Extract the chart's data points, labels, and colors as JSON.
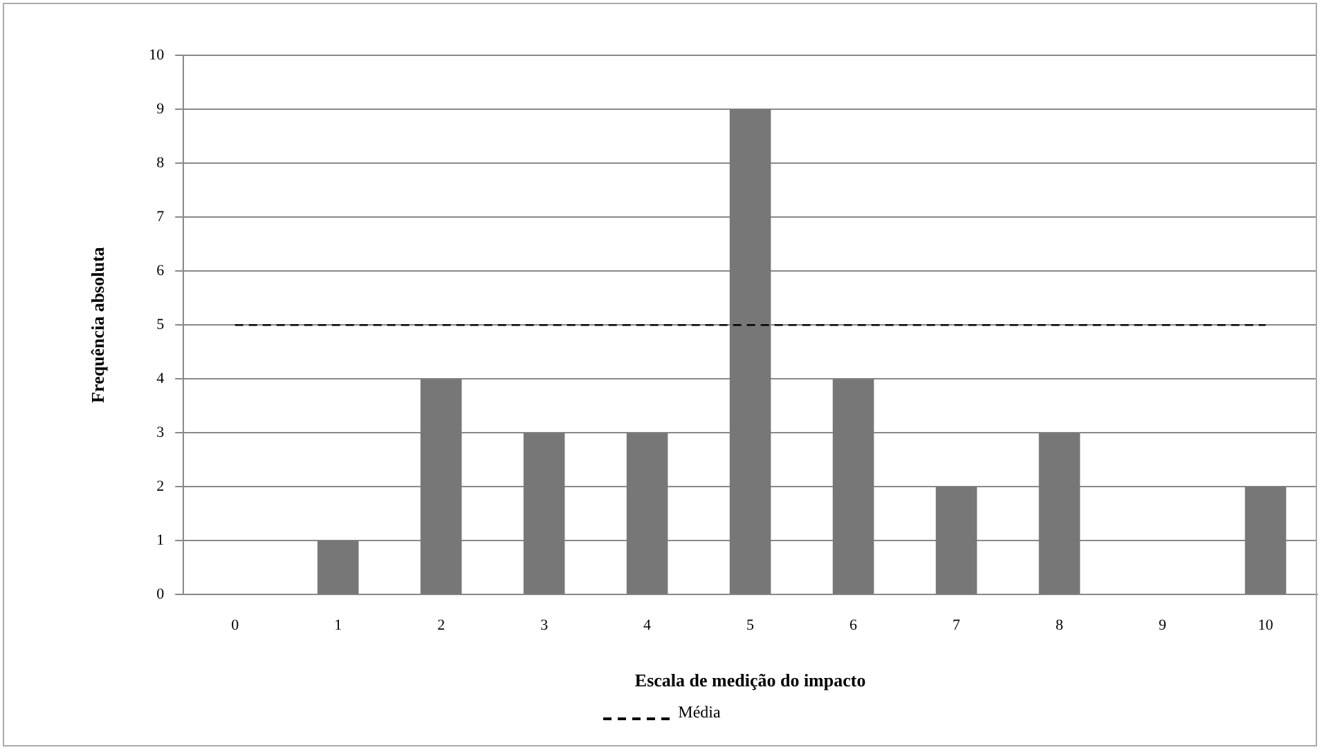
{
  "chart_data": {
    "type": "bar",
    "xlabel": "Escala de medição do impacto",
    "ylabel": "Frequência absoluta",
    "categories": [
      "0",
      "1",
      "2",
      "3",
      "4",
      "5",
      "6",
      "7",
      "8",
      "9",
      "10"
    ],
    "values": [
      0,
      1,
      4,
      3,
      3,
      9,
      4,
      2,
      3,
      0,
      2
    ],
    "color": "#777777",
    "ylim": [
      0,
      10
    ],
    "yticks": [
      0,
      1,
      2,
      3,
      4,
      5,
      6,
      7,
      8,
      9,
      10
    ],
    "grid": "y",
    "ref_lines": [
      {
        "axis": "y",
        "value": 5,
        "label": "Média",
        "color": "#000000",
        "line_style": "dashed"
      }
    ],
    "legend": "bottom"
  }
}
